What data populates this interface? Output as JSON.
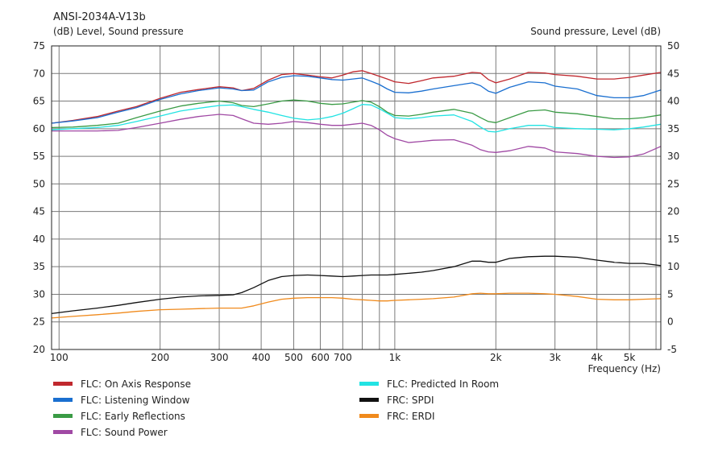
{
  "chart_data": {
    "type": "line",
    "title": "ANSI-2034A-V13b",
    "left_axis_label": "(dB)  Level, Sound pressure",
    "right_axis_label": "Sound pressure, Level  (dB)",
    "xlabel": "Frequency  (Hz)",
    "x_scale": "log",
    "xlim": [
      95,
      6200
    ],
    "ylim_left": [
      20,
      75
    ],
    "ylim_right": [
      -5,
      50
    ],
    "x_tick_labels": [
      {
        "value": 100,
        "label": "100"
      },
      {
        "value": 200,
        "label": "200"
      },
      {
        "value": 300,
        "label": "300"
      },
      {
        "value": 400,
        "label": "400"
      },
      {
        "value": 500,
        "label": "500"
      },
      {
        "value": 600,
        "label": "600"
      },
      {
        "value": 700,
        "label": "700"
      },
      {
        "value": 1000,
        "label": "1k"
      },
      {
        "value": 2000,
        "label": "2k"
      },
      {
        "value": 3000,
        "label": "3k"
      },
      {
        "value": 4000,
        "label": "4k"
      },
      {
        "value": 5000,
        "label": "5k"
      }
    ],
    "y_ticks_left": [
      20,
      25,
      30,
      35,
      40,
      45,
      50,
      55,
      60,
      65,
      70,
      75
    ],
    "y_ticks_right": [
      -5,
      0,
      5,
      10,
      15,
      20,
      25,
      30,
      35,
      40,
      45,
      50
    ],
    "grid": true,
    "legend_position": "bottom",
    "series": [
      {
        "name": "FLC: On Axis Response",
        "color": "#c0282e",
        "axis": "left",
        "x": [
          95,
          110,
          130,
          150,
          170,
          200,
          230,
          260,
          300,
          330,
          350,
          380,
          420,
          460,
          500,
          550,
          600,
          650,
          700,
          750,
          800,
          850,
          900,
          950,
          1000,
          1100,
          1200,
          1300,
          1500,
          1700,
          1800,
          1900,
          2000,
          2200,
          2500,
          2800,
          3000,
          3500,
          4000,
          4500,
          5000,
          5500,
          6200
        ],
        "y": [
          61.0,
          61.5,
          62.2,
          63.2,
          64.0,
          65.5,
          66.6,
          67.1,
          67.6,
          67.4,
          66.9,
          67.3,
          68.8,
          69.8,
          70.0,
          69.7,
          69.4,
          69.2,
          69.7,
          70.3,
          70.5,
          70.0,
          69.5,
          69.0,
          68.5,
          68.2,
          68.7,
          69.2,
          69.5,
          70.2,
          70.1,
          68.9,
          68.3,
          69.0,
          70.2,
          70.1,
          69.8,
          69.5,
          69.0,
          69.0,
          69.3,
          69.7,
          70.2
        ]
      },
      {
        "name": "FLC: Listening Window",
        "color": "#1a6fd0",
        "axis": "left",
        "x": [
          95,
          110,
          130,
          150,
          170,
          200,
          230,
          260,
          300,
          330,
          350,
          380,
          420,
          460,
          500,
          550,
          600,
          650,
          700,
          750,
          800,
          850,
          900,
          950,
          1000,
          1100,
          1200,
          1300,
          1500,
          1700,
          1800,
          1900,
          2000,
          2200,
          2500,
          2800,
          3000,
          3500,
          4000,
          4500,
          5000,
          5500,
          6200
        ],
        "y": [
          61.0,
          61.4,
          62.0,
          63.0,
          63.8,
          65.3,
          66.3,
          66.9,
          67.4,
          67.2,
          66.9,
          67.0,
          68.5,
          69.3,
          69.6,
          69.5,
          69.2,
          68.9,
          68.8,
          69.0,
          69.2,
          68.6,
          68.0,
          67.2,
          66.6,
          66.5,
          66.8,
          67.2,
          67.8,
          68.3,
          67.8,
          66.8,
          66.4,
          67.5,
          68.5,
          68.3,
          67.7,
          67.2,
          66.0,
          65.6,
          65.6,
          66.0,
          67.0
        ]
      },
      {
        "name": "FLC: Early Reflections",
        "color": "#3a9b45",
        "axis": "left",
        "x": [
          95,
          110,
          130,
          150,
          170,
          200,
          230,
          260,
          300,
          330,
          350,
          380,
          420,
          460,
          500,
          550,
          600,
          650,
          700,
          750,
          800,
          850,
          900,
          950,
          1000,
          1100,
          1200,
          1300,
          1500,
          1700,
          1800,
          1900,
          2000,
          2200,
          2500,
          2800,
          3000,
          3500,
          4000,
          4500,
          5000,
          5500,
          6200
        ],
        "y": [
          60.2,
          60.3,
          60.6,
          61.0,
          62.0,
          63.2,
          64.1,
          64.6,
          65.0,
          64.7,
          64.2,
          64.0,
          64.5,
          65.0,
          65.2,
          65.0,
          64.6,
          64.4,
          64.5,
          64.8,
          65.1,
          64.8,
          64.0,
          63.0,
          62.4,
          62.3,
          62.6,
          63.0,
          63.5,
          62.8,
          62.0,
          61.3,
          61.1,
          62.0,
          63.2,
          63.4,
          63.0,
          62.7,
          62.2,
          61.8,
          61.8,
          62.0,
          62.5
        ]
      },
      {
        "name": "FLC: Sound Power",
        "color": "#a049a4",
        "axis": "left",
        "x": [
          95,
          110,
          130,
          150,
          170,
          200,
          230,
          260,
          300,
          330,
          350,
          380,
          420,
          460,
          500,
          550,
          600,
          650,
          700,
          750,
          800,
          850,
          900,
          950,
          1000,
          1100,
          1200,
          1300,
          1500,
          1700,
          1800,
          1900,
          2000,
          2200,
          2500,
          2800,
          3000,
          3500,
          4000,
          4500,
          5000,
          5500,
          6200
        ],
        "y": [
          59.6,
          59.6,
          59.6,
          59.7,
          60.2,
          61.0,
          61.7,
          62.2,
          62.6,
          62.4,
          61.8,
          61.0,
          60.8,
          61.0,
          61.3,
          61.1,
          60.8,
          60.6,
          60.6,
          60.8,
          61.0,
          60.6,
          59.8,
          58.8,
          58.2,
          57.5,
          57.7,
          57.9,
          58.0,
          57.0,
          56.2,
          55.8,
          55.7,
          56.0,
          56.8,
          56.5,
          55.8,
          55.5,
          55.0,
          54.8,
          54.9,
          55.4,
          56.8
        ]
      },
      {
        "name": "FLC: Predicted In Room",
        "color": "#22e3e3",
        "axis": "left",
        "x": [
          95,
          110,
          130,
          150,
          170,
          200,
          230,
          260,
          300,
          330,
          350,
          380,
          420,
          460,
          500,
          550,
          600,
          650,
          700,
          750,
          800,
          850,
          900,
          950,
          1000,
          1100,
          1200,
          1300,
          1500,
          1700,
          1800,
          1900,
          2000,
          2200,
          2500,
          2800,
          3000,
          3500,
          4000,
          4500,
          5000,
          5500,
          6200
        ],
        "y": [
          59.8,
          60.0,
          60.2,
          60.6,
          61.3,
          62.3,
          63.2,
          63.7,
          64.2,
          64.3,
          64.0,
          63.5,
          63.0,
          62.4,
          61.9,
          61.6,
          61.8,
          62.2,
          62.8,
          63.6,
          64.4,
          64.3,
          63.6,
          62.8,
          62.0,
          61.8,
          62.0,
          62.3,
          62.5,
          61.3,
          60.3,
          59.5,
          59.4,
          60.0,
          60.6,
          60.6,
          60.2,
          60.0,
          59.9,
          59.8,
          60.0,
          60.3,
          60.8
        ]
      },
      {
        "name": "FRC: SPDI",
        "color": "#111111",
        "axis": "right",
        "x": [
          95,
          110,
          130,
          150,
          170,
          200,
          230,
          260,
          300,
          330,
          350,
          380,
          420,
          460,
          500,
          550,
          600,
          650,
          700,
          750,
          800,
          850,
          900,
          950,
          1000,
          1100,
          1200,
          1300,
          1500,
          1700,
          1800,
          1900,
          2000,
          2200,
          2500,
          2800,
          3000,
          3500,
          4000,
          4500,
          5000,
          5500,
          6200
        ],
        "y": [
          1.5,
          2.0,
          2.5,
          3.0,
          3.5,
          4.1,
          4.5,
          4.7,
          4.8,
          4.9,
          5.3,
          6.2,
          7.5,
          8.2,
          8.4,
          8.5,
          8.4,
          8.3,
          8.2,
          8.3,
          8.4,
          8.5,
          8.5,
          8.5,
          8.6,
          8.8,
          9.0,
          9.3,
          10.0,
          11.0,
          11.0,
          10.8,
          10.8,
          11.5,
          11.8,
          11.9,
          11.9,
          11.7,
          11.2,
          10.8,
          10.6,
          10.6,
          10.2
        ]
      },
      {
        "name": "FRC: ERDI",
        "color": "#f08a1c",
        "axis": "right",
        "x": [
          95,
          110,
          130,
          150,
          170,
          200,
          230,
          260,
          300,
          330,
          350,
          380,
          420,
          460,
          500,
          550,
          600,
          650,
          700,
          750,
          800,
          850,
          900,
          950,
          1000,
          1100,
          1200,
          1300,
          1500,
          1700,
          1800,
          1900,
          2000,
          2200,
          2500,
          2800,
          3000,
          3500,
          4000,
          4500,
          5000,
          5500,
          6200
        ],
        "y": [
          0.7,
          1.0,
          1.3,
          1.6,
          1.9,
          2.2,
          2.3,
          2.4,
          2.5,
          2.5,
          2.5,
          2.9,
          3.6,
          4.1,
          4.3,
          4.4,
          4.4,
          4.4,
          4.3,
          4.1,
          4.0,
          3.9,
          3.8,
          3.8,
          3.9,
          4.0,
          4.1,
          4.2,
          4.5,
          5.1,
          5.2,
          5.1,
          5.1,
          5.2,
          5.2,
          5.1,
          5.0,
          4.6,
          4.1,
          4.0,
          4.0,
          4.1,
          4.2
        ]
      }
    ]
  }
}
